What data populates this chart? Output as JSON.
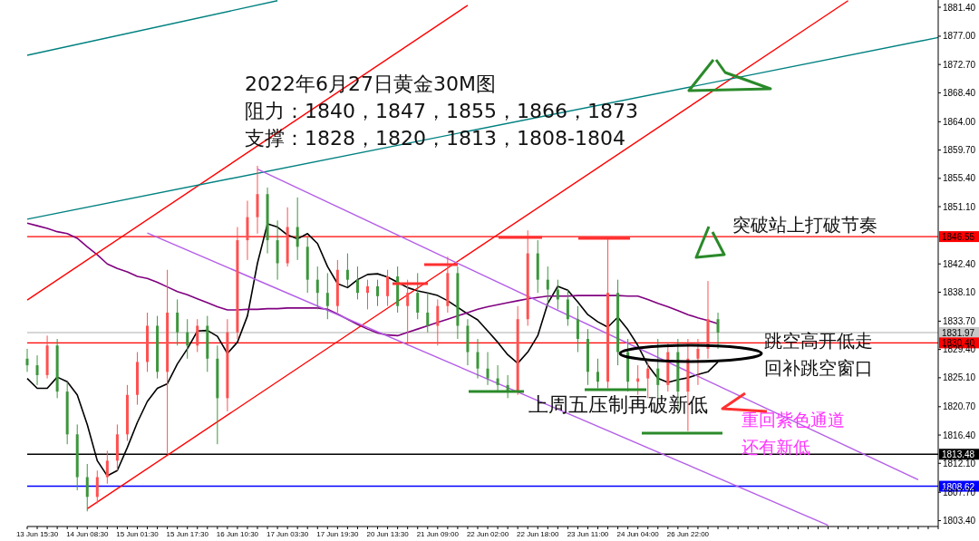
{
  "chart_data": {
    "type": "candlestick",
    "categories": [
      null,
      "13 Jun 15:30",
      null,
      null,
      null,
      null,
      "14 Jun 08:30",
      null,
      null,
      null,
      null,
      "15 Jun 01:30",
      null,
      null,
      null,
      null,
      "15 Jun 17:30",
      null,
      null,
      null,
      null,
      "16 Jun 10:30",
      null,
      null,
      null,
      null,
      "17 Jun 03:30",
      null,
      null,
      null,
      null,
      "17 Jun 19:30",
      null,
      null,
      null,
      null,
      "20 Jun 13:30",
      null,
      null,
      null,
      null,
      "21 Jun 09:00",
      null,
      null,
      null,
      null,
      "22 Jun 02:00",
      null,
      null,
      null,
      null,
      "22 Jun 18:00",
      null,
      null,
      null,
      null,
      "23 Jun 11:00",
      null,
      null,
      null,
      null,
      "24 Jun 04:00",
      null,
      null,
      null,
      null,
      "26 Jun 22:00",
      null,
      null,
      null,
      null,
      null,
      null,
      null,
      null,
      null,
      null,
      null,
      null,
      null,
      null,
      null,
      null,
      null,
      null,
      null,
      null,
      null,
      null,
      null,
      null,
      null
    ],
    "ohlc": [
      [
        1828,
        1829.5,
        1826,
        1827
      ],
      [
        1827,
        1828.5,
        1824,
        1825.5
      ],
      [
        1825.5,
        1831.5,
        1825,
        1830
      ],
      [
        1830,
        1831,
        1822,
        1823
      ],
      [
        1823,
        1824.5,
        1815,
        1816.5
      ],
      [
        1816.5,
        1818,
        1808,
        1810
      ],
      [
        1810,
        1812,
        1804.8,
        1807
      ],
      [
        1807,
        1811,
        1806,
        1810
      ],
      [
        1810,
        1814,
        1809,
        1812.5
      ],
      [
        1812.5,
        1818,
        1811,
        1816.5
      ],
      [
        1816.5,
        1824,
        1815.5,
        1822.5
      ],
      [
        1822.5,
        1829,
        1821,
        1827.5
      ],
      [
        1827.5,
        1835,
        1826,
        1833
      ],
      [
        1833,
        1834.5,
        1825,
        1826
      ],
      [
        1826,
        1841.5,
        1813.5,
        1835
      ],
      [
        1835,
        1837,
        1830,
        1832
      ],
      [
        1832,
        1834,
        1828,
        1830
      ],
      [
        1830,
        1834,
        1829,
        1833
      ],
      [
        1833,
        1834.5,
        1826,
        1828
      ],
      [
        1828,
        1830,
        1815,
        1822
      ],
      [
        1822,
        1834,
        1820,
        1832
      ],
      [
        1832,
        1848,
        1831,
        1846
      ],
      [
        1846,
        1852,
        1843,
        1849.5
      ],
      [
        1849.5,
        1857.3,
        1847,
        1853
      ],
      [
        1853,
        1854,
        1844,
        1846
      ],
      [
        1846,
        1849,
        1840,
        1842.5
      ],
      [
        1842.5,
        1851,
        1842,
        1848
      ],
      [
        1848,
        1852.5,
        1843,
        1845
      ],
      [
        1845,
        1846.5,
        1838,
        1840
      ],
      [
        1840,
        1842,
        1835.5,
        1838
      ],
      [
        1838,
        1841,
        1834,
        1836
      ],
      [
        1836,
        1843,
        1835,
        1841.5
      ],
      [
        1841.5,
        1844,
        1839,
        1840
      ],
      [
        1840,
        1842,
        1837,
        1838
      ],
      [
        1838,
        1840,
        1835.5,
        1839
      ],
      [
        1839,
        1840,
        1836,
        1837.5
      ],
      [
        1837.5,
        1841.5,
        1836,
        1840.5
      ],
      [
        1840.5,
        1842,
        1835,
        1836
      ],
      [
        1836,
        1840,
        1830,
        1838
      ],
      [
        1838,
        1841,
        1834,
        1835
      ],
      [
        1835,
        1838,
        1832,
        1833
      ],
      [
        1833,
        1837,
        1830,
        1836
      ],
      [
        1836,
        1843.5,
        1835,
        1841
      ],
      [
        1841,
        1842,
        1831,
        1833
      ],
      [
        1833,
        1834,
        1827,
        1829
      ],
      [
        1829,
        1831,
        1825,
        1826.5
      ],
      [
        1826.5,
        1829,
        1824,
        1825
      ],
      [
        1825,
        1827,
        1823,
        1824
      ],
      [
        1824,
        1825.5,
        1822,
        1823
      ],
      [
        1823,
        1836,
        1822.5,
        1834
      ],
      [
        1834,
        1847.5,
        1833,
        1844
      ],
      [
        1844,
        1846,
        1838,
        1840
      ],
      [
        1840,
        1842,
        1836,
        1838.5
      ],
      [
        1838.5,
        1840,
        1835.5,
        1837
      ],
      [
        1837,
        1838.5,
        1833,
        1834
      ],
      [
        1834,
        1836,
        1829,
        1831
      ],
      [
        1831,
        1832.5,
        1824,
        1826
      ],
      [
        1826,
        1828,
        1823.5,
        1824.5
      ],
      [
        1824.5,
        1846.3,
        1823.5,
        1838
      ],
      [
        1838,
        1840,
        1827,
        1829
      ],
      [
        1829,
        1831,
        1823,
        1824.5
      ],
      [
        1824.5,
        1827,
        1822.5,
        1825
      ],
      [
        1825,
        1827.5,
        1822,
        1826.5
      ],
      [
        1826.5,
        1831,
        1822,
        1824
      ],
      [
        1824,
        1830.5,
        1823,
        1829
      ],
      [
        1829,
        1831,
        1820,
        1823
      ],
      [
        1823,
        1831,
        1817,
        1828
      ],
      [
        1828,
        1831,
        1824,
        1829.5
      ],
      [
        1829.5,
        1839.8,
        1828,
        1834
      ],
      [
        1834,
        1835,
        1829.5,
        1831.97
      ],
      null,
      null,
      null,
      null,
      null,
      null,
      null,
      null,
      null,
      null,
      null,
      null,
      null,
      null,
      null,
      null,
      null,
      null,
      null,
      null,
      null,
      null
    ],
    "colors": [
      "#3c963c",
      "#3c963c",
      "#ff5050",
      "#3c963c",
      "#3c963c",
      "#3c963c",
      "#3c963c",
      "#ff5050",
      "#ff5050",
      "#ff5050",
      "#ff5050",
      "#ff5050",
      "#ff5050",
      "#3c963c",
      "#ff5050",
      "#3c963c",
      "#3c963c",
      "#ff5050",
      "#3c963c",
      "#3c963c",
      "#ff5050",
      "#ff5050",
      "#ff5050",
      "#ff5050",
      "#3c963c",
      "#3c963c",
      "#ff5050",
      "#3c963c",
      "#3c963c",
      "#3c963c",
      "#3c963c",
      "#ff5050",
      "#3c963c",
      "#3c963c",
      "#ff5050",
      "#3c963c",
      "#ff5050",
      "#3c963c",
      "#ff5050",
      "#3c963c",
      "#3c963c",
      "#ff5050",
      "#ff5050",
      "#3c963c",
      "#3c963c",
      "#3c963c",
      "#3c963c",
      "#3c963c",
      "#3c963c",
      "#ff5050",
      "#ff5050",
      "#3c963c",
      "#3c963c",
      "#3c963c",
      "#3c963c",
      "#3c963c",
      "#3c963c",
      "#3c963c",
      "#ff5050",
      "#3c963c",
      "#3c963c",
      "#ff5050",
      "#ff5050",
      "#3c963c",
      "#ff5050",
      "#3c963c",
      "#ff5050",
      "#ff5050",
      "#ff5050",
      "#3c963c",
      null,
      null,
      null,
      null,
      null,
      null,
      null,
      null,
      null,
      null,
      null,
      null,
      null,
      null,
      null,
      null,
      null,
      null,
      null,
      null,
      null,
      null
    ],
    "series": [
      {
        "type": "line",
        "color": "#000000",
        "values": [
          1825,
          1823.5,
          1823.5,
          1825.2,
          1824.5,
          1822.5,
          1818,
          1812.5,
          1810.2,
          1811,
          1814.5,
          1818.3,
          1821.5,
          1823.5,
          1824.2,
          1827.2,
          1829.5,
          1832.2,
          1832.3,
          1831.4,
          1828.8,
          1830.5,
          1834.5,
          1842.5,
          1848.5,
          1848,
          1846.8,
          1846.2,
          1847,
          1845.5,
          1842,
          1839.4,
          1838.8,
          1840,
          1840.8,
          1840.9,
          1840.4,
          1839.6,
          1838.8,
          1838.3,
          1838,
          1837.6,
          1836.8,
          1835.8,
          1834.8,
          1833.9,
          1832.2,
          1830.5,
          1828.6,
          1827.3,
          1829,
          1831.5,
          1836.4,
          1839,
          1838.4,
          1836.6,
          1834.7,
          1833.6,
          1832.8,
          1834.3,
          1832.4,
          1830,
          1827,
          1825,
          1824.4,
          1824.8,
          1825.1,
          1825.6,
          1826,
          1827.5,
          null,
          null,
          null,
          null,
          null,
          null,
          null,
          null,
          null,
          null,
          null,
          null,
          null,
          null,
          null,
          null,
          null,
          null,
          null,
          null,
          null,
          null
        ]
      },
      {
        "type": "line",
        "color": "#800080",
        "values": [
          1848.6,
          1848.2,
          1847.8,
          1847.3,
          1847,
          1846.3,
          1845,
          1843.8,
          1842.4,
          1841.7,
          1841.2,
          1840.5,
          1840.2,
          1839.6,
          1838.9,
          1838.2,
          1837.7,
          1837.1,
          1836.5,
          1835.9,
          1835.4,
          1835.4,
          1835.5,
          1835.5,
          1835.6,
          1835.6,
          1835.7,
          1835.7,
          1835.7,
          1835.7,
          1835.5,
          1834.8,
          1834,
          1833.2,
          1832.5,
          1831.9,
          1831.6,
          1831.5,
          1832,
          1832.5,
          1833,
          1833.5,
          1834,
          1834.5,
          1835,
          1835.5,
          1835.9,
          1836.2,
          1836.5,
          1836.8,
          1837.1,
          1837.3,
          1837.5,
          1837.5,
          1837.5,
          1837.6,
          1837.6,
          1837.6,
          1837.6,
          1837.6,
          1837.5,
          1837.5,
          1837,
          1836.4,
          1835.9,
          1835.3,
          1834.7,
          1834.2,
          1833.8,
          1833.3,
          null,
          null,
          null,
          null,
          null,
          null,
          null,
          null,
          null,
          null,
          null,
          null,
          null,
          null,
          null,
          null,
          null,
          null,
          null,
          null,
          null,
          null
        ]
      },
      {
        "type": "line",
        "color": "#ff0000",
        "values": [
          1836.9,
          null,
          null,
          null,
          null,
          null,
          null,
          null,
          null,
          null,
          null,
          null,
          null,
          null,
          null,
          null,
          null,
          null,
          null,
          null,
          null,
          null,
          null,
          null,
          null,
          null,
          null,
          null,
          null,
          null,
          null,
          null,
          null,
          null,
          null,
          null,
          null,
          null,
          null,
          null,
          null,
          null,
          null,
          null,
          1881.7,
          null,
          null,
          null,
          null,
          null,
          null,
          null,
          null,
          null,
          null,
          null,
          null,
          null,
          null,
          null,
          null,
          null,
          null,
          null,
          null,
          null,
          null,
          null,
          null,
          null,
          null,
          null,
          null,
          null,
          null,
          null,
          null,
          null,
          null,
          null,
          null,
          null,
          null,
          null,
          null,
          null,
          null,
          null,
          null,
          null,
          null,
          null
        ]
      },
      {
        "type": "line",
        "color": "#ff0000",
        "values": [
          null,
          null,
          null,
          null,
          null,
          null,
          1805.2,
          null,
          null,
          null,
          null,
          null,
          null,
          null,
          null,
          null,
          null,
          null,
          null,
          null,
          null,
          null,
          null,
          null,
          null,
          null,
          null,
          null,
          null,
          null,
          null,
          null,
          null,
          null,
          null,
          null,
          null,
          null,
          null,
          null,
          null,
          null,
          null,
          null,
          null,
          null,
          null,
          null,
          null,
          null,
          null,
          null,
          null,
          null,
          null,
          null,
          null,
          null,
          null,
          null,
          null,
          null,
          null,
          null,
          null,
          null,
          null,
          null,
          null,
          null,
          null,
          null,
          null,
          null,
          null,
          null,
          null,
          null,
          null,
          null,
          null,
          null,
          1882.4,
          null,
          null,
          null,
          null,
          null,
          null,
          null,
          null,
          null
        ]
      },
      {
        "type": "line",
        "color": "#008080",
        "values": [
          1874.1,
          null,
          null,
          null,
          null,
          null,
          null,
          null,
          null,
          null,
          null,
          null,
          null,
          null,
          null,
          null,
          null,
          null,
          null,
          null,
          null,
          null,
          null,
          null,
          null,
          1882.4,
          null,
          null,
          null,
          null,
          null,
          null,
          null,
          null,
          null,
          null,
          null,
          null,
          null,
          null,
          null,
          null,
          null,
          null,
          null,
          null,
          null,
          null,
          null,
          null,
          null,
          null,
          null,
          null,
          null,
          null,
          null,
          null,
          null,
          null,
          null,
          null,
          null,
          null,
          null,
          null,
          null,
          null,
          null,
          null,
          null,
          null,
          null,
          null,
          null,
          null,
          null,
          null,
          null,
          null,
          null,
          null,
          null,
          null,
          null,
          null,
          null,
          null,
          null,
          null,
          null,
          null
        ]
      },
      {
        "type": "line",
        "color": "#008080",
        "values": [
          1849.2,
          null,
          null,
          null,
          null,
          null,
          null,
          null,
          null,
          null,
          null,
          null,
          null,
          null,
          null,
          null,
          null,
          null,
          null,
          null,
          null,
          null,
          null,
          null,
          null,
          null,
          null,
          null,
          null,
          null,
          null,
          null,
          null,
          null,
          null,
          null,
          null,
          null,
          null,
          null,
          null,
          null,
          null,
          null,
          null,
          null,
          null,
          null,
          null,
          null,
          null,
          null,
          null,
          null,
          null,
          null,
          null,
          null,
          null,
          null,
          null,
          null,
          null,
          null,
          null,
          null,
          null,
          null,
          null,
          null,
          null,
          null,
          null,
          null,
          null,
          null,
          null,
          null,
          null,
          null,
          null,
          null,
          null,
          null,
          null,
          null,
          null,
          null,
          null,
          null,
          null,
          1876.8
        ]
      },
      {
        "type": "line",
        "color": "#b45ee8",
        "values": [
          null,
          null,
          null,
          null,
          null,
          null,
          null,
          null,
          null,
          null,
          null,
          null,
          null,
          null,
          null,
          null,
          null,
          null,
          null,
          null,
          null,
          null,
          null,
          1856.8,
          null,
          null,
          null,
          null,
          null,
          null,
          null,
          null,
          null,
          null,
          null,
          null,
          null,
          null,
          null,
          null,
          null,
          null,
          null,
          null,
          null,
          null,
          null,
          null,
          null,
          null,
          null,
          null,
          null,
          null,
          null,
          null,
          null,
          null,
          null,
          null,
          null,
          null,
          null,
          null,
          null,
          null,
          null,
          null,
          null,
          null,
          null,
          null,
          null,
          null,
          null,
          null,
          null,
          null,
          null,
          null,
          null,
          null,
          null,
          null,
          null,
          null,
          null,
          null,
          null,
          1809.6,
          null,
          null
        ]
      },
      {
        "type": "line",
        "color": "#b45ee8",
        "values": [
          null,
          null,
          null,
          null,
          null,
          null,
          null,
          null,
          null,
          null,
          null,
          null,
          1847.1,
          null,
          null,
          null,
          null,
          null,
          null,
          null,
          null,
          null,
          null,
          null,
          null,
          null,
          null,
          null,
          null,
          null,
          null,
          null,
          null,
          null,
          null,
          null,
          null,
          null,
          null,
          null,
          null,
          null,
          null,
          null,
          null,
          null,
          null,
          null,
          null,
          null,
          null,
          null,
          null,
          null,
          null,
          null,
          null,
          null,
          null,
          null,
          null,
          null,
          null,
          null,
          null,
          null,
          null,
          null,
          null,
          null,
          null,
          null,
          null,
          null,
          null,
          null,
          null,
          null,
          null,
          null,
          1802.7,
          null,
          null,
          null,
          null,
          null,
          null,
          null,
          null,
          null,
          null,
          null
        ]
      }
    ],
    "ref_lines": [
      {
        "axis": "y",
        "value": 1846.55,
        "label": "1846.55",
        "color": "#ff0000"
      },
      {
        "axis": "y",
        "value": 1831.97,
        "label": "1831.97",
        "color": "#c8c8c8"
      },
      {
        "axis": "y",
        "value": 1830.4,
        "label": "1830.40",
        "color": "#ff0000"
      },
      {
        "axis": "y",
        "value": 1813.48,
        "label": "1813.48",
        "color": "#000000"
      },
      {
        "axis": "y",
        "value": 1808.62,
        "label": "1808.62",
        "color": "#0000ff"
      }
    ],
    "annotations": [
      "2022年6月27日黄金30M图",
      "阻力：1840，1847，1855，1866，1873",
      "支撑：1828，1820，1813，1808-1804",
      "突破站上打破节奏",
      "跳空高开低走",
      "回补跳空窗口",
      "上周五压制再破新低",
      "重回紫色通道",
      "还有新低"
    ],
    "ylim": [
      1802.5,
      1882.5
    ],
    "yticks": [
      {
        "value": 1803.4,
        "label": "1803.40"
      },
      {
        "value": 1807.7,
        "label": "1807.70"
      },
      {
        "value": 1812.1,
        "label": "1812.10"
      },
      {
        "value": 1816.4,
        "label": "1816.40"
      },
      {
        "value": 1820.7,
        "label": "1820.70"
      },
      {
        "value": 1825.1,
        "label": "1825.10"
      },
      {
        "value": 1829.4,
        "label": "1829.40"
      },
      {
        "value": 1833.7,
        "label": "1833.70"
      },
      {
        "value": 1838.1,
        "label": "1838.10"
      },
      {
        "value": 1842.4,
        "label": "1842.40"
      },
      {
        "value": 1851.1,
        "label": "1851.10"
      },
      {
        "value": 1855.4,
        "label": "1855.40"
      },
      {
        "value": 1859.7,
        "label": "1859.70"
      },
      {
        "value": 1864,
        "label": "1864.00"
      },
      {
        "value": 1868.4,
        "label": "1868.40"
      },
      {
        "value": 1872.7,
        "label": "1872.70"
      },
      {
        "value": 1877,
        "label": "1877.00"
      },
      {
        "value": 1881.4,
        "label": "1881.40"
      }
    ]
  }
}
